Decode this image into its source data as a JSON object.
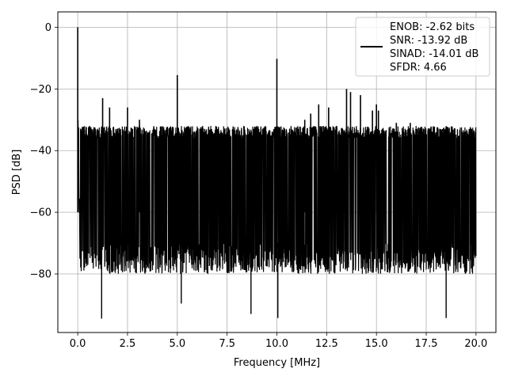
{
  "chart_data": {
    "type": "line",
    "title": "",
    "xlabel": "Frequency [MHz]",
    "ylabel": "PSD [dB]",
    "xlim": [
      -1.0,
      21.0
    ],
    "ylim": [
      -99.0,
      5.0
    ],
    "xticks": [
      0.0,
      2.5,
      5.0,
      7.5,
      10.0,
      12.5,
      15.0,
      17.5,
      20.0
    ],
    "xtick_labels": [
      "0.0",
      "2.5",
      "5.0",
      "7.5",
      "10.0",
      "12.5",
      "15.0",
      "17.5",
      "20.0"
    ],
    "yticks": [
      0,
      -20,
      -40,
      -60,
      -80
    ],
    "ytick_labels": [
      "0",
      "−20",
      "−40",
      "−60",
      "−80"
    ],
    "grid": true,
    "legend_position": "top-right",
    "series": [
      {
        "color": "#000000",
        "noise_floor_top_db": -34,
        "noise_floor_bottom_db": -76,
        "peaks": [
          {
            "x": 0.0,
            "y": 0.0
          },
          {
            "x": 1.25,
            "y": -23
          },
          {
            "x": 1.6,
            "y": -26
          },
          {
            "x": 2.5,
            "y": -26
          },
          {
            "x": 3.1,
            "y": -30
          },
          {
            "x": 5.0,
            "y": -15.5
          },
          {
            "x": 10.0,
            "y": -10.2
          },
          {
            "x": 11.4,
            "y": -30
          },
          {
            "x": 11.7,
            "y": -28
          },
          {
            "x": 12.1,
            "y": -25
          },
          {
            "x": 12.6,
            "y": -26
          },
          {
            "x": 13.0,
            "y": -32
          },
          {
            "x": 13.5,
            "y": -20
          },
          {
            "x": 13.7,
            "y": -21
          },
          {
            "x": 14.2,
            "y": -22
          },
          {
            "x": 14.8,
            "y": -27
          },
          {
            "x": 15.0,
            "y": -25
          },
          {
            "x": 15.1,
            "y": -27
          },
          {
            "x": 16.0,
            "y": -31
          },
          {
            "x": 16.7,
            "y": -31
          },
          {
            "x": 18.0,
            "y": -34
          }
        ],
        "dips": [
          {
            "x": 1.2,
            "y": -94.5
          },
          {
            "x": 5.2,
            "y": -89.6
          },
          {
            "x": 8.7,
            "y": -93.0
          },
          {
            "x": 10.05,
            "y": -94.3
          },
          {
            "x": 18.5,
            "y": -94.3
          }
        ]
      }
    ],
    "legend_entries": [
      "ENOB: -2.62 bits",
      "SNR: -13.92 dB",
      "SINAD: -14.01 dB",
      "SFDR: 4.66"
    ]
  }
}
